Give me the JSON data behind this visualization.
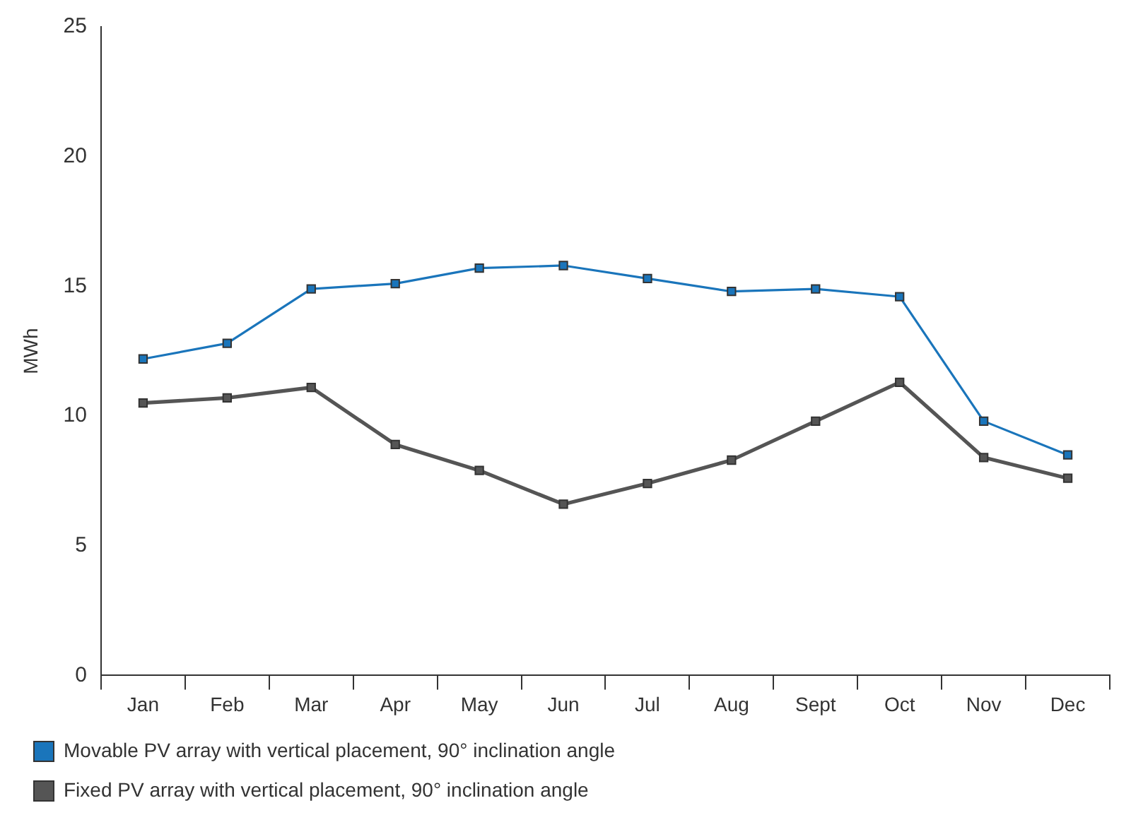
{
  "chart_data": {
    "type": "line",
    "ylabel": "MWh",
    "categories": [
      "Jan",
      "Feb",
      "Mar",
      "Apr",
      "May",
      "Jun",
      "Jul",
      "Aug",
      "Sept",
      "Oct",
      "Nov",
      "Dec"
    ],
    "series": [
      {
        "name": "Movable PV array with vertical placement, 90° inclination angle",
        "color": "#1a75bb",
        "values": [
          12.2,
          12.8,
          14.9,
          15.1,
          15.7,
          15.8,
          15.3,
          14.8,
          14.9,
          14.6,
          9.8,
          8.5
        ]
      },
      {
        "name": "Fixed PV array with vertical placement, 90° inclination angle",
        "color": "#555555",
        "values": [
          10.5,
          10.7,
          11.1,
          8.9,
          7.9,
          6.6,
          7.4,
          8.3,
          9.8,
          11.3,
          8.4,
          7.6
        ]
      }
    ],
    "ylim": [
      0,
      25
    ],
    "yticks": [
      0,
      5,
      10,
      15,
      20,
      25
    ],
    "grid": false,
    "legend": "bottom left",
    "marker": "square",
    "line_style": "solid"
  }
}
